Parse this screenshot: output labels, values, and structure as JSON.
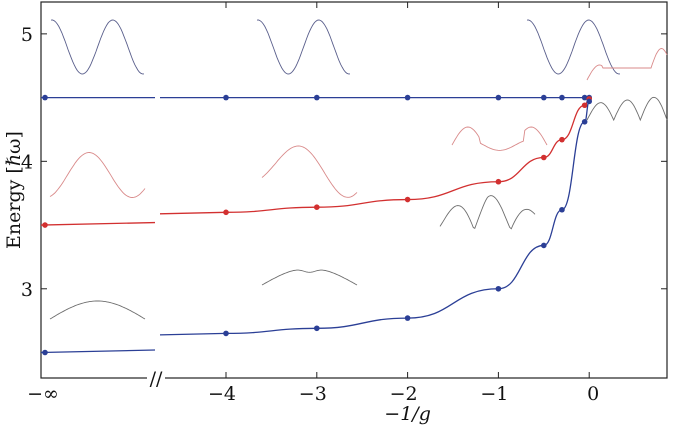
{
  "chart_data": {
    "type": "line",
    "xlabel": "−1/g",
    "ylabel": "Energy [ℏω]",
    "xlim": [
      -4.5,
      0.9
    ],
    "ylim": [
      2.3,
      5.25
    ],
    "x_axis_break": {
      "symbol": "//",
      "left_tick_label": "−∞"
    },
    "xticks": [
      -4,
      -3,
      -2,
      -1,
      0
    ],
    "xtick_labels": [
      "−4",
      "−3",
      "−2",
      "−1",
      "0"
    ],
    "yticks": [
      3,
      4,
      5
    ],
    "ytick_labels": [
      "3",
      "4",
      "5"
    ],
    "grid": false,
    "legend": "none",
    "series": [
      {
        "color": "#2b3f96",
        "limit_at_minus_infinity": 4.5,
        "points": [
          [
            -4,
            4.5
          ],
          [
            -3,
            4.5
          ],
          [
            -2,
            4.5
          ],
          [
            -1,
            4.5
          ],
          [
            -0.5,
            4.5
          ],
          [
            -0.3,
            4.5
          ],
          [
            -0.05,
            4.5
          ],
          [
            0,
            4.5
          ]
        ]
      },
      {
        "color": "#d23030",
        "limit_at_minus_infinity": 3.5,
        "points": [
          [
            -4,
            3.6
          ],
          [
            -3,
            3.64
          ],
          [
            -2,
            3.7
          ],
          [
            -1,
            3.84
          ],
          [
            -0.5,
            4.03
          ],
          [
            -0.3,
            4.17
          ],
          [
            -0.05,
            4.44
          ],
          [
            0,
            4.49
          ]
        ]
      },
      {
        "color": "#2b3f96",
        "limit_at_minus_infinity": 2.5,
        "points": [
          [
            -4,
            2.65
          ],
          [
            -3,
            2.69
          ],
          [
            -2,
            2.77
          ],
          [
            -1,
            3.0
          ],
          [
            -0.5,
            3.34
          ],
          [
            -0.3,
            3.62
          ],
          [
            -0.05,
            4.31
          ],
          [
            0,
            4.47
          ]
        ]
      }
    ]
  },
  "colors": {
    "blue": "#2b3f96",
    "red": "#d23030",
    "inset_blue": "#5a5f8c",
    "inset_red": "#d98a8a",
    "inset_gray": "#6e6e6e"
  }
}
